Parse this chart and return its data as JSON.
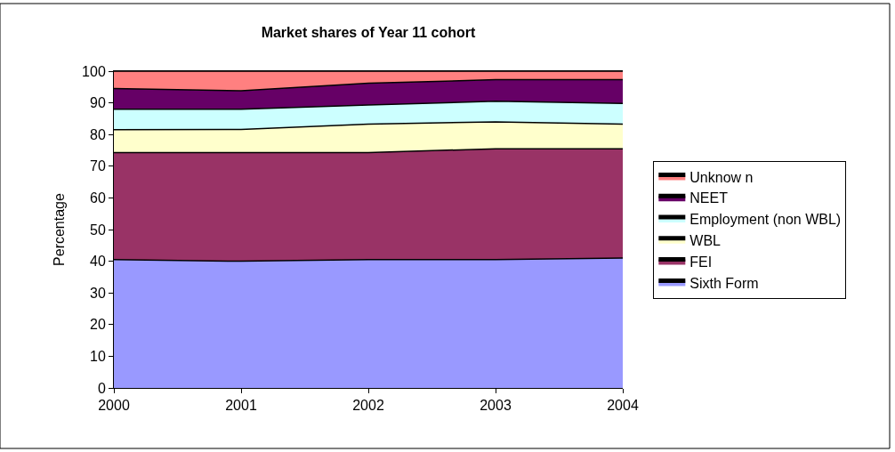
{
  "chart_data": {
    "type": "area",
    "stacked": true,
    "title": "Market shares of Year 11 cohort",
    "ylabel": "Percentage",
    "x": [
      2000,
      2001,
      2002,
      2003,
      2004
    ],
    "xlim": [
      2000,
      2004
    ],
    "xticks": [
      2000,
      2001,
      2002,
      2003,
      2004
    ],
    "ylim": [
      0,
      100
    ],
    "yticks": [
      0,
      10,
      20,
      30,
      40,
      50,
      60,
      70,
      80,
      90,
      100
    ],
    "legend": "right",
    "series": [
      {
        "name": "Sixth Form",
        "color": "#9999ff",
        "values": [
          40.5,
          40.0,
          40.5,
          40.5,
          41.0
        ]
      },
      {
        "name": "FEI",
        "color": "#993366",
        "values": [
          33.8,
          34.3,
          33.8,
          35.0,
          34.5
        ]
      },
      {
        "name": "WBL",
        "color": "#ffffcc",
        "values": [
          7.2,
          7.3,
          9.0,
          8.5,
          7.8
        ]
      },
      {
        "name": "Employment (non WBL)",
        "color": "#ccffff",
        "values": [
          6.5,
          6.4,
          6.0,
          6.5,
          6.5
        ]
      },
      {
        "name": "NEET",
        "color": "#660066",
        "values": [
          6.5,
          5.8,
          6.9,
          6.8,
          7.5
        ]
      },
      {
        "name": "Unknow n",
        "color": "#ff8080",
        "values": [
          5.5,
          6.2,
          3.8,
          2.7,
          2.7
        ]
      }
    ]
  }
}
